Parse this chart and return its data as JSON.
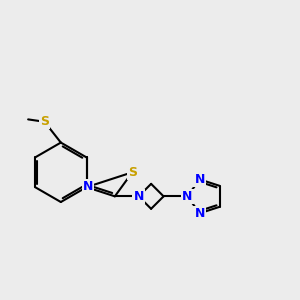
{
  "background_color": "#ececec",
  "bond_color": "#000000",
  "N_color": "#0000ff",
  "S_color": "#c8a000",
  "bond_lw": 1.5,
  "figsize": [
    3.0,
    3.0
  ],
  "dpi": 100,
  "xlim": [
    -1.5,
    8.5
  ],
  "ylim": [
    -2.0,
    3.5
  ]
}
